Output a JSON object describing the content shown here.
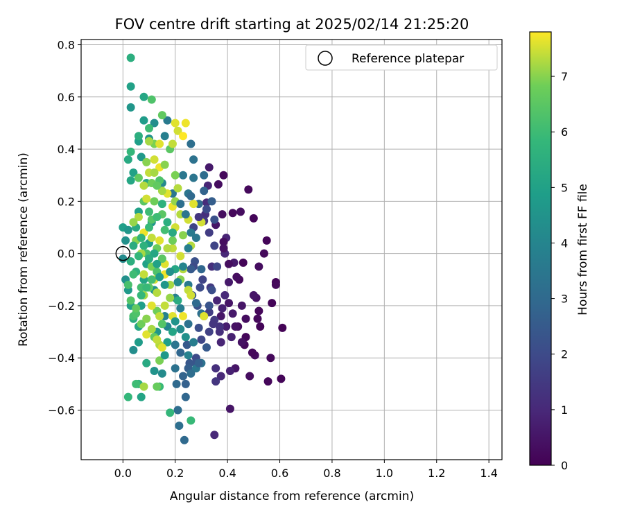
{
  "chart_data": {
    "type": "scatter",
    "title": "FOV centre drift starting at 2025/02/14 21:25:20",
    "xlabel": "Angular distance from reference (arcmin)",
    "ylabel": "Rotation from reference (arcmin)",
    "xlim": [
      -0.16,
      1.45
    ],
    "ylim": [
      -0.79,
      0.82
    ],
    "xticks": [
      "0.0",
      "0.2",
      "0.4",
      "0.6",
      "0.8",
      "1.0",
      "1.2",
      "1.4"
    ],
    "xtick_values": [
      0,
      0.2,
      0.4,
      0.6,
      0.8,
      1.0,
      1.2,
      1.4
    ],
    "yticks": [
      "−0.6",
      "−0.4",
      "−0.2",
      "0.0",
      "0.2",
      "0.4",
      "0.6",
      "0.8"
    ],
    "ytick_values": [
      -0.6,
      -0.4,
      -0.2,
      0,
      0.2,
      0.4,
      0.6,
      0.8
    ],
    "grid": true,
    "legend": {
      "position": "top-right",
      "label": "Reference platepar"
    },
    "reference_point": {
      "x": 0.0,
      "y": 0.0
    },
    "colorbar": {
      "label": "Hours from first FF file",
      "colormap": "viridis",
      "min": 0,
      "max": 7.8,
      "ticks": [
        "0",
        "1",
        "2",
        "3",
        "4",
        "5",
        "6",
        "7"
      ],
      "tick_values": [
        0,
        1,
        2,
        3,
        4,
        5,
        6,
        7
      ]
    },
    "points": [
      [
        0.61,
        -0.285,
        0.05
      ],
      [
        0.605,
        -0.48,
        0.1
      ],
      [
        0.585,
        -0.11,
        0.1
      ],
      [
        0.585,
        -0.12,
        0.2
      ],
      [
        0.57,
        -0.19,
        0.1
      ],
      [
        0.565,
        -0.4,
        0.2
      ],
      [
        0.555,
        -0.49,
        0.15
      ],
      [
        0.55,
        0.05,
        0.1
      ],
      [
        0.54,
        0.0,
        0.2
      ],
      [
        0.525,
        -0.28,
        0.1
      ],
      [
        0.52,
        -0.05,
        0.3
      ],
      [
        0.52,
        -0.22,
        0.15
      ],
      [
        0.515,
        -0.25,
        0.2
      ],
      [
        0.51,
        -0.17,
        0.4
      ],
      [
        0.505,
        -0.39,
        0.3
      ],
      [
        0.5,
        0.135,
        0.1
      ],
      [
        0.495,
        -0.38,
        0.2
      ],
      [
        0.5,
        -0.16,
        0.5
      ],
      [
        0.485,
        -0.47,
        0.3
      ],
      [
        0.48,
        0.245,
        0.2
      ],
      [
        0.47,
        -0.32,
        0.15
      ],
      [
        0.47,
        -0.25,
        0.3
      ],
      [
        0.465,
        -0.35,
        0.2
      ],
      [
        0.46,
        -0.035,
        0.1
      ],
      [
        0.455,
        -0.2,
        0.5
      ],
      [
        0.455,
        -0.34,
        0.4
      ],
      [
        0.45,
        0.16,
        0.3
      ],
      [
        0.445,
        -0.1,
        0.2
      ],
      [
        0.44,
        -0.28,
        0.3
      ],
      [
        0.435,
        -0.09,
        0.3
      ],
      [
        0.43,
        -0.28,
        0.4
      ],
      [
        0.43,
        -0.44,
        0.5
      ],
      [
        0.425,
        -0.035,
        0.6
      ],
      [
        0.42,
        0.155,
        0.2
      ],
      [
        0.42,
        -0.23,
        0.6
      ],
      [
        0.415,
        -0.32,
        0.8
      ],
      [
        0.41,
        -0.595,
        0.5
      ],
      [
        0.41,
        -0.45,
        0.8
      ],
      [
        0.405,
        -0.04,
        0.3
      ],
      [
        0.405,
        -0.19,
        0.5
      ],
      [
        0.405,
        -0.11,
        0.6
      ],
      [
        0.395,
        -0.28,
        0.7
      ],
      [
        0.395,
        0.06,
        0.9
      ],
      [
        0.39,
        0.0,
        1.0
      ],
      [
        0.39,
        -0.16,
        1.0
      ],
      [
        0.385,
        0.3,
        0.2
      ],
      [
        0.385,
        0.045,
        0.3
      ],
      [
        0.385,
        0.02,
        0.4
      ],
      [
        0.38,
        0.15,
        0.3
      ],
      [
        0.38,
        -0.21,
        0.8
      ],
      [
        0.375,
        -0.34,
        0.9
      ],
      [
        0.375,
        -0.47,
        1.0
      ],
      [
        0.375,
        -0.24,
        0.5
      ],
      [
        0.37,
        -0.3,
        1.2
      ],
      [
        0.37,
        -0.28,
        1.3
      ],
      [
        0.365,
        0.265,
        0.3
      ],
      [
        0.36,
        -0.05,
        1.0
      ],
      [
        0.36,
        -0.18,
        0.9
      ],
      [
        0.355,
        0.11,
        0.5
      ],
      [
        0.355,
        -0.44,
        1.2
      ],
      [
        0.355,
        -0.49,
        1.4
      ],
      [
        0.35,
        -0.695,
        1.0
      ],
      [
        0.35,
        -0.255,
        1.5
      ],
      [
        0.345,
        -0.27,
        1.4
      ],
      [
        0.34,
        -0.05,
        1.2
      ],
      [
        0.335,
        -0.13,
        1.5
      ],
      [
        0.33,
        -0.225,
        1.6
      ],
      [
        0.33,
        -0.3,
        1.7
      ],
      [
        0.33,
        0.33,
        0.6
      ],
      [
        0.325,
        0.26,
        0.9
      ],
      [
        0.32,
        0.195,
        1.1
      ],
      [
        0.315,
        0.15,
        1.2
      ],
      [
        0.31,
        0.125,
        1.5
      ],
      [
        0.31,
        -0.24,
        1.6
      ],
      [
        0.305,
        -0.1,
        1.8
      ],
      [
        0.3,
        -0.33,
        1.9
      ],
      [
        0.295,
        -0.13,
        2.0
      ],
      [
        0.29,
        -0.285,
        2.1
      ],
      [
        0.285,
        -0.2,
        2.2
      ],
      [
        0.28,
        -0.4,
        2.0
      ],
      [
        0.28,
        -0.42,
        2.3
      ],
      [
        0.275,
        -0.03,
        2.2
      ],
      [
        0.27,
        -0.05,
        2.0
      ],
      [
        0.27,
        0.1,
        1.8
      ],
      [
        0.265,
        -0.16,
        2.4
      ],
      [
        0.26,
        -0.06,
        2.5
      ],
      [
        0.255,
        -0.42,
        2.4
      ],
      [
        0.25,
        -0.44,
        2.6
      ],
      [
        0.245,
        -0.35,
        2.5
      ],
      [
        0.24,
        -0.5,
        2.7
      ],
      [
        0.235,
        -0.715,
        3.0
      ],
      [
        0.23,
        -0.47,
        2.8
      ],
      [
        0.22,
        -0.38,
        2.9
      ],
      [
        0.215,
        -0.66,
        3.2
      ],
      [
        0.21,
        -0.6,
        3.1
      ],
      [
        0.205,
        -0.5,
        3.0
      ],
      [
        0.2,
        -0.44,
        3.3
      ],
      [
        0.2,
        -0.35,
        3.4
      ],
      [
        0.19,
        0.23,
        3.5
      ],
      [
        0.25,
        0.23,
        3.4
      ],
      [
        0.27,
        0.36,
        3.3
      ],
      [
        0.26,
        0.42,
        3.2
      ],
      [
        0.23,
        0.3,
        3.5
      ],
      [
        0.31,
        0.3,
        3.1
      ],
      [
        0.27,
        0.29,
        3.4
      ],
      [
        0.29,
        0.19,
        3.0
      ],
      [
        0.28,
        0.06,
        3.5
      ],
      [
        0.25,
        -0.12,
        3.6
      ],
      [
        0.3,
        -0.06,
        2.9
      ],
      [
        0.28,
        -0.19,
        3.0
      ],
      [
        0.3,
        -0.23,
        3.2
      ],
      [
        0.25,
        -0.27,
        3.3
      ],
      [
        0.22,
        -0.21,
        3.7
      ],
      [
        0.2,
        -0.17,
        3.8
      ],
      [
        0.16,
        -0.24,
        3.9
      ],
      [
        0.17,
        -0.28,
        4.0
      ],
      [
        0.15,
        -0.46,
        4.2
      ],
      [
        0.12,
        -0.45,
        4.5
      ],
      [
        0.17,
        0.51,
        3.6
      ],
      [
        0.16,
        0.45,
        3.8
      ],
      [
        0.15,
        0.27,
        4.1
      ],
      [
        0.12,
        0.5,
        4.3
      ],
      [
        0.1,
        0.44,
        4.5
      ],
      [
        0.08,
        0.51,
        4.8
      ],
      [
        0.07,
        0.37,
        4.7
      ],
      [
        0.06,
        0.43,
        4.9
      ],
      [
        0.04,
        0.31,
        5.0
      ],
      [
        0.03,
        0.28,
        5.2
      ],
      [
        0.02,
        0.36,
        5.3
      ],
      [
        0.03,
        0.56,
        4.6
      ],
      [
        0.03,
        0.64,
        5.0
      ],
      [
        0.03,
        0.75,
        5.5
      ],
      [
        0.08,
        0.6,
        5.2
      ],
      [
        0.09,
        0.27,
        5.1
      ],
      [
        0.06,
        0.16,
        5.0
      ],
      [
        0.05,
        0.1,
        5.3
      ],
      [
        0.0,
        0.1,
        4.9
      ],
      [
        0.02,
        0.09,
        4.6
      ],
      [
        0.01,
        0.05,
        4.4
      ],
      [
        0.0,
        -0.02,
        4.2
      ],
      [
        0.01,
        -0.1,
        4.4
      ],
      [
        0.02,
        -0.14,
        4.7
      ],
      [
        0.03,
        -0.2,
        5.0
      ],
      [
        0.04,
        -0.25,
        5.4
      ],
      [
        0.06,
        -0.34,
        4.8
      ],
      [
        0.06,
        -0.28,
        5.2
      ],
      [
        0.07,
        -0.2,
        4.9
      ],
      [
        0.08,
        -0.1,
        5.1
      ],
      [
        0.09,
        -0.04,
        5.0
      ],
      [
        0.1,
        0.04,
        4.8
      ],
      [
        0.11,
        0.12,
        4.6
      ],
      [
        0.12,
        -0.14,
        4.5
      ],
      [
        0.13,
        -0.3,
        4.6
      ],
      [
        0.09,
        -0.42,
        5.3
      ],
      [
        0.06,
        -0.5,
        5.5
      ],
      [
        0.07,
        -0.55,
        5.1
      ],
      [
        0.02,
        -0.55,
        5.8
      ],
      [
        0.04,
        -0.37,
        4.3
      ],
      [
        0.05,
        -0.5,
        6.0
      ],
      [
        0.14,
        -0.51,
        5.9
      ],
      [
        0.18,
        -0.61,
        5.8
      ],
      [
        0.26,
        -0.64,
        5.9
      ],
      [
        0.04,
        -0.24,
        6.2
      ],
      [
        0.05,
        -0.23,
        6.3
      ],
      [
        0.07,
        -0.13,
        6.1
      ],
      [
        0.09,
        0.0,
        6.2
      ],
      [
        0.11,
        0.13,
        6.4
      ],
      [
        0.1,
        0.16,
        6.0
      ],
      [
        0.08,
        0.2,
        6.5
      ],
      [
        0.06,
        0.29,
        6.6
      ],
      [
        0.03,
        0.39,
        5.8
      ],
      [
        0.06,
        0.45,
        5.5
      ],
      [
        0.1,
        0.48,
        6.0
      ],
      [
        0.11,
        0.59,
        6.3
      ],
      [
        0.15,
        0.53,
        6.6
      ],
      [
        0.12,
        0.42,
        6.9
      ],
      [
        0.18,
        0.4,
        6.5
      ],
      [
        0.14,
        0.28,
        6.3
      ],
      [
        0.12,
        0.2,
        6.8
      ],
      [
        0.15,
        0.15,
        6.5
      ],
      [
        0.16,
        0.09,
        6.1
      ],
      [
        0.13,
        0.02,
        6.7
      ],
      [
        0.11,
        -0.05,
        6.9
      ],
      [
        0.1,
        -0.13,
        6.6
      ],
      [
        0.13,
        -0.22,
        6.8
      ],
      [
        0.15,
        -0.27,
        6.4
      ],
      [
        0.12,
        -0.32,
        6.6
      ],
      [
        0.14,
        -0.41,
        6.9
      ],
      [
        0.13,
        -0.51,
        6.7
      ],
      [
        0.08,
        -0.51,
        7.2
      ],
      [
        0.14,
        -0.35,
        7.3
      ],
      [
        0.16,
        -0.2,
        7.4
      ],
      [
        0.18,
        -0.12,
        7.2
      ],
      [
        0.16,
        -0.04,
        7.6
      ],
      [
        0.19,
        0.02,
        7.4
      ],
      [
        0.2,
        0.1,
        7.5
      ],
      [
        0.19,
        0.18,
        7.7
      ],
      [
        0.17,
        0.23,
        7.6
      ],
      [
        0.21,
        0.25,
        7.3
      ],
      [
        0.21,
        0.47,
        7.5
      ],
      [
        0.2,
        0.5,
        7.6
      ],
      [
        0.24,
        0.5,
        7.7
      ],
      [
        0.23,
        0.45,
        7.8
      ],
      [
        0.19,
        0.42,
        7.4
      ],
      [
        0.14,
        0.42,
        7.6
      ],
      [
        0.1,
        0.43,
        7.2
      ],
      [
        0.12,
        0.36,
        7.5
      ],
      [
        0.1,
        0.31,
        7.4
      ],
      [
        0.14,
        0.33,
        7.7
      ],
      [
        0.15,
        0.24,
        7.2
      ],
      [
        0.09,
        0.21,
        7.5
      ],
      [
        0.06,
        0.14,
        7.3
      ],
      [
        0.08,
        0.08,
        7.7
      ],
      [
        0.11,
        0.06,
        7.4
      ],
      [
        0.14,
        0.05,
        7.6
      ],
      [
        0.17,
        0.02,
        7.3
      ],
      [
        0.22,
        -0.01,
        7.5
      ],
      [
        0.23,
        -0.06,
        7.3
      ],
      [
        0.16,
        -0.08,
        7.7
      ],
      [
        0.12,
        -0.1,
        7.5
      ],
      [
        0.08,
        -0.08,
        7.4
      ],
      [
        0.08,
        -0.16,
        7.2
      ],
      [
        0.11,
        -0.2,
        7.6
      ],
      [
        0.14,
        -0.24,
        7.4
      ],
      [
        0.19,
        -0.24,
        7.6
      ],
      [
        0.23,
        -0.24,
        7.7
      ],
      [
        0.25,
        -0.14,
        7.4
      ],
      [
        0.26,
        -0.16,
        7.5
      ],
      [
        0.31,
        -0.24,
        7.6
      ],
      [
        0.27,
        0.19,
        7.6
      ],
      [
        0.3,
        0.12,
        7.5
      ],
      [
        0.22,
        0.15,
        7.3
      ],
      [
        0.25,
        0.13,
        7.5
      ],
      [
        0.2,
        0.2,
        7.1
      ],
      [
        0.23,
        0.07,
        7.0
      ],
      [
        0.26,
        0.03,
        7.3
      ],
      [
        0.22,
        -0.1,
        7.0
      ],
      [
        0.18,
        -0.17,
        7.1
      ],
      [
        0.13,
        -0.15,
        7.3
      ],
      [
        0.09,
        -0.31,
        7.6
      ],
      [
        0.07,
        0.0,
        7.2
      ],
      [
        0.05,
        0.05,
        7.0
      ],
      [
        0.04,
        0.12,
        7.1
      ],
      [
        0.08,
        0.26,
        7.3
      ],
      [
        0.09,
        0.35,
        7.0
      ],
      [
        0.11,
        0.27,
        6.8
      ],
      [
        0.13,
        0.26,
        6.6
      ],
      [
        0.12,
        0.31,
        7.2
      ],
      [
        0.16,
        0.34,
        7.0
      ],
      [
        0.2,
        0.3,
        6.9
      ],
      [
        0.19,
        0.05,
        6.8
      ],
      [
        0.15,
        -0.02,
        6.5
      ],
      [
        0.13,
        -0.07,
        6.3
      ],
      [
        0.11,
        -0.1,
        6.1
      ],
      [
        0.09,
        -0.13,
        5.9
      ],
      [
        0.07,
        -0.16,
        5.8
      ],
      [
        0.05,
        -0.07,
        5.6
      ],
      [
        0.03,
        -0.03,
        5.5
      ],
      [
        0.04,
        0.03,
        5.4
      ],
      [
        0.07,
        0.06,
        5.7
      ],
      [
        0.1,
        0.1,
        5.9
      ],
      [
        0.13,
        0.14,
        6.0
      ],
      [
        0.15,
        0.19,
        5.6
      ],
      [
        0.17,
        0.12,
        5.5
      ],
      [
        0.19,
        0.08,
        5.3
      ],
      [
        0.2,
        -0.06,
        5.2
      ],
      [
        0.21,
        -0.18,
        5.4
      ],
      [
        0.19,
        -0.3,
        5.1
      ],
      [
        0.17,
        -0.34,
        4.9
      ],
      [
        0.16,
        -0.39,
        4.7
      ],
      [
        0.2,
        -0.26,
        4.5
      ],
      [
        0.24,
        -0.32,
        4.4
      ],
      [
        0.22,
        -0.29,
        4.2
      ],
      [
        0.25,
        -0.39,
        3.9
      ],
      [
        0.27,
        -0.34,
        3.7
      ],
      [
        0.28,
        -0.44,
        3.5
      ],
      [
        0.3,
        -0.42,
        3.3
      ],
      [
        0.26,
        -0.46,
        3.1
      ],
      [
        0.24,
        -0.55,
        2.9
      ],
      [
        0.29,
        -0.42,
        2.7
      ],
      [
        0.32,
        -0.36,
        2.5
      ],
      [
        0.33,
        -0.2,
        2.3
      ],
      [
        0.34,
        -0.14,
        2.1
      ],
      [
        0.36,
        -0.05,
        1.9
      ],
      [
        0.35,
        0.03,
        1.8
      ],
      [
        0.33,
        0.08,
        1.6
      ],
      [
        0.29,
        0.14,
        1.4
      ],
      [
        0.32,
        0.17,
        2.0
      ],
      [
        0.35,
        0.13,
        2.2
      ],
      [
        0.34,
        0.2,
        2.6
      ],
      [
        0.31,
        0.24,
        2.8
      ],
      [
        0.26,
        0.22,
        3.0
      ],
      [
        0.22,
        0.19,
        3.2
      ],
      [
        0.24,
        0.15,
        3.4
      ],
      [
        0.26,
        0.08,
        3.6
      ],
      [
        0.25,
        0.02,
        3.8
      ],
      [
        0.23,
        -0.05,
        4.0
      ],
      [
        0.21,
        -0.11,
        4.2
      ],
      [
        0.18,
        -0.07,
        4.4
      ],
      [
        0.16,
        -0.12,
        4.6
      ],
      [
        0.14,
        -0.09,
        4.8
      ],
      [
        0.13,
        -0.04,
        5.0
      ],
      [
        0.12,
        0.0,
        5.2
      ],
      [
        0.1,
        -0.02,
        5.4
      ],
      [
        0.08,
        0.03,
        5.6
      ],
      [
        0.06,
        -0.01,
        5.8
      ],
      [
        0.04,
        -0.08,
        6.0
      ],
      [
        0.02,
        -0.12,
        6.2
      ],
      [
        0.03,
        -0.18,
        6.4
      ],
      [
        0.05,
        -0.21,
        6.6
      ],
      [
        0.07,
        -0.27,
        6.8
      ],
      [
        0.09,
        -0.25,
        7.0
      ],
      [
        0.11,
        -0.29,
        7.2
      ],
      [
        0.13,
        -0.33,
        7.4
      ],
      [
        0.15,
        -0.36,
        7.6
      ]
    ]
  }
}
